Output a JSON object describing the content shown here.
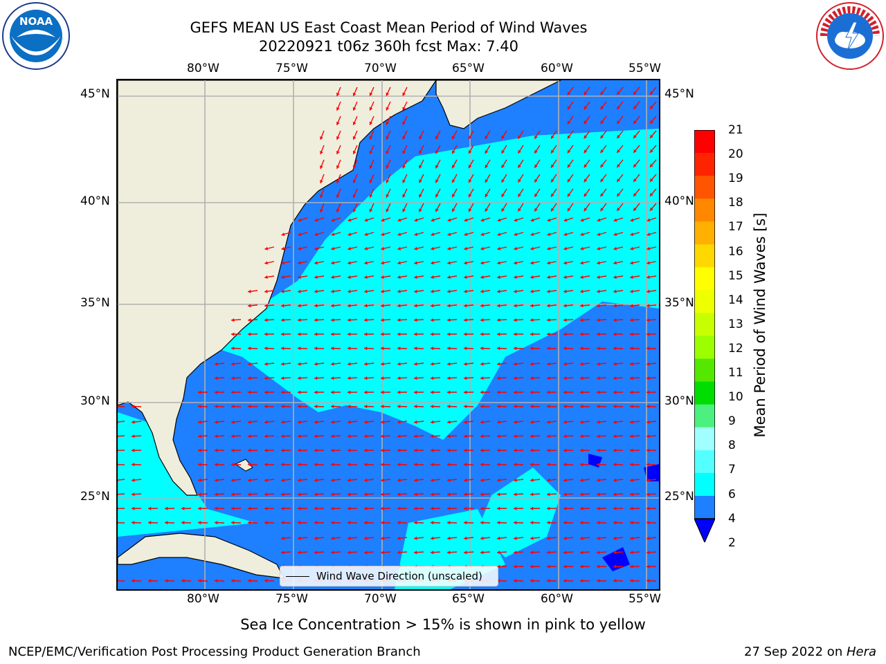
{
  "header": {
    "title_line1": "GEFS MEAN US East Coast Mean Period of Wind Waves",
    "title_line2": "20220921 t06z 360h fcst   Max: 7.40"
  },
  "logos": {
    "left": {
      "name": "noaa-logo",
      "text": "NOAA"
    },
    "right": {
      "name": "nws-logo",
      "text": "NATIONAL WEATHER SERVICE"
    }
  },
  "map": {
    "lon_labels": [
      "80°W",
      "75°W",
      "70°W",
      "65°W",
      "60°W",
      "55°W"
    ],
    "lat_labels": [
      "45°N",
      "40°N",
      "35°N",
      "30°N",
      "25°N"
    ],
    "legend_label": "Wind Wave Direction (unscaled)",
    "colors": {
      "land": "#efeedd",
      "band_2_4": "#1e7fff",
      "band_4_6": "#00ffff",
      "band_lt2": "#0000ff",
      "arrow": "#ff0000",
      "grid": "#b0b0b0"
    }
  },
  "colorbar": {
    "label": "Mean Period of Wind Waves [s]",
    "ticks": [
      "21",
      "20",
      "19",
      "18",
      "17",
      "16",
      "15",
      "14",
      "13",
      "12",
      "11",
      "10",
      "9",
      "8",
      "7",
      "6",
      "4",
      "2"
    ],
    "colors": [
      "#ff0000",
      "#ff2400",
      "#ff5500",
      "#ff8800",
      "#ffb000",
      "#ffd800",
      "#ffff00",
      "#eeff00",
      "#c8ff00",
      "#9cff00",
      "#54e800",
      "#00dd00",
      "#4cf07e",
      "#a0ffff",
      "#54ffff",
      "#00ffff",
      "#1e7fff",
      "#0000ff"
    ]
  },
  "note": "Sea Ice Concentration > 15% is shown in pink to yellow",
  "footer": {
    "left": "NCEP/EMC/Verification Post Processing Product Generation Branch",
    "date": "27 Sep 2022 on ",
    "machine": "Hera"
  }
}
